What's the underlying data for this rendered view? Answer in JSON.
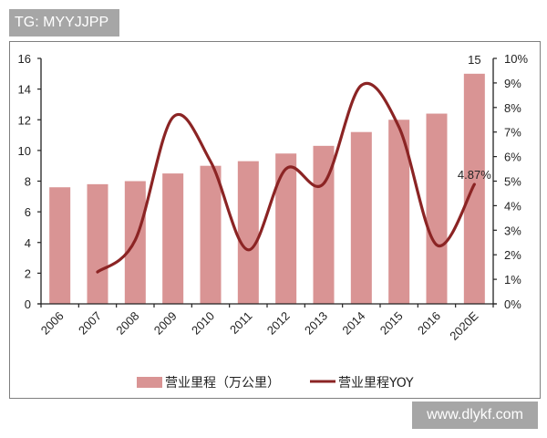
{
  "watermarks": {
    "top_left": "TG: MYYJJPP",
    "bottom_right": "www.dlykf.com"
  },
  "colors": {
    "bar": "#d99494",
    "line": "#8b2424",
    "axis": "#222222",
    "frame": "#7f7f7f",
    "watermark_bg": "#a6a6a6"
  },
  "chart_data": {
    "type": "bar+line",
    "title": "",
    "categories": [
      "2006",
      "2007",
      "2008",
      "2009",
      "2010",
      "2011",
      "2012",
      "2013",
      "2014",
      "2015",
      "2016",
      "2020E"
    ],
    "series": [
      {
        "name": "营业里程（万公里）",
        "type": "bar",
        "axis": "left",
        "values": [
          7.6,
          7.8,
          8.0,
          8.5,
          9.0,
          9.3,
          9.8,
          10.3,
          11.2,
          12.0,
          12.4,
          15.0
        ]
      },
      {
        "name": "营业里程YOY",
        "type": "line",
        "axis": "right",
        "unit": "%",
        "values": [
          null,
          1.3,
          2.6,
          7.6,
          5.8,
          2.2,
          5.5,
          4.9,
          8.9,
          7.2,
          2.4,
          4.87
        ]
      }
    ],
    "data_labels": [
      {
        "category": "2020E",
        "series": "营业里程（万公里）",
        "text": "15"
      },
      {
        "category": "2020E",
        "series": "营业里程YOY",
        "text": "4.87%"
      }
    ],
    "left_axis": {
      "min": 0,
      "max": 16,
      "ticks": [
        "0",
        "2",
        "4",
        "6",
        "8",
        "10",
        "12",
        "14",
        "16"
      ]
    },
    "right_axis": {
      "min": 0,
      "max": 10,
      "ticks": [
        "0%",
        "1%",
        "2%",
        "3%",
        "4%",
        "5%",
        "6%",
        "7%",
        "8%",
        "9%",
        "10%"
      ]
    },
    "xlabel": "",
    "ylabel": "",
    "grid": false,
    "legend_position": "bottom",
    "legend": [
      "营业里程（万公里）",
      "营业里程YOY"
    ]
  }
}
